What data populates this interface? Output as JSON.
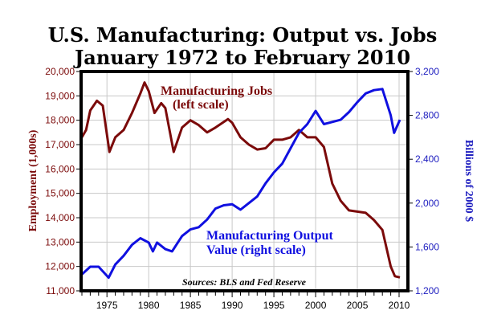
{
  "chart_data": {
    "type": "line",
    "title": "U.S. Manufacturing: Output vs. Jobs",
    "subtitle": "January 1972 to February 2010",
    "ylabel_left": "Employment (1,000s)",
    "ylabel_right": "Billions of 2000 $",
    "xlim": [
      1972,
      2010.5
    ],
    "ylim_left": [
      11000,
      20000
    ],
    "ylim_right": [
      1200,
      3200
    ],
    "x_ticks": [
      1975,
      1980,
      1985,
      1990,
      1995,
      2000,
      2005,
      2010
    ],
    "x_tick_labels": [
      "1975",
      "1980",
      "1985",
      "1990",
      "1995",
      "2000",
      "2005",
      "2010"
    ],
    "y_left_ticks": [
      11000,
      12000,
      13000,
      14000,
      15000,
      16000,
      17000,
      18000,
      19000,
      20000
    ],
    "y_left_tick_labels": [
      "11,000",
      "12,000",
      "13,000",
      "14,000",
      "15,000",
      "16,000",
      "17,000",
      "18,000",
      "19,000",
      "20,000"
    ],
    "y_right_ticks": [
      1200,
      1600,
      2000,
      2400,
      2800,
      3200
    ],
    "y_right_tick_labels": [
      "1,200",
      "1,600",
      "2,000",
      "2,400",
      "2,800",
      "3,200"
    ],
    "grid": true,
    "annotations": {
      "jobs_line1": "Manufacturing Jobs",
      "jobs_line2": "(left scale)",
      "output_line1": "Manufacturing Output",
      "output_line2": "Value (right scale)",
      "source": "Sources: BLS and Fed Reserve"
    },
    "colors": {
      "jobs": "#7b0a0a",
      "output": "#1010e0",
      "left_axis_text": "#7b0a0a",
      "right_axis_text": "#2020c0"
    },
    "series": [
      {
        "name": "Manufacturing Jobs",
        "axis": "left",
        "x": [
          1972,
          1972.5,
          1973,
          1973.8,
          1974.5,
          1975.3,
          1976,
          1977,
          1978,
          1979,
          1979.5,
          1980,
          1980.7,
          1981.5,
          1982,
          1983,
          1984,
          1985,
          1986,
          1987,
          1988,
          1989.5,
          1990,
          1991,
          1992,
          1993,
          1994,
          1995,
          1996,
          1997,
          1998,
          1999,
          2000,
          2001,
          2002,
          2003,
          2004,
          2005,
          2006,
          2007,
          2008,
          2009,
          2009.5,
          2010.1
        ],
        "values": [
          17300,
          17600,
          18400,
          18800,
          18600,
          16700,
          17300,
          17600,
          18300,
          19100,
          19550,
          19200,
          18300,
          18700,
          18500,
          16700,
          17700,
          18000,
          17800,
          17500,
          17700,
          18050,
          17900,
          17300,
          17000,
          16800,
          16850,
          17200,
          17200,
          17300,
          17600,
          17300,
          17300,
          16900,
          15400,
          14700,
          14300,
          14250,
          14200,
          13900,
          13500,
          12000,
          11600,
          11550
        ]
      },
      {
        "name": "Manufacturing Output Value",
        "axis": "right",
        "x": [
          1972,
          1973,
          1974,
          1975.2,
          1976,
          1977,
          1978,
          1979,
          1980,
          1980.5,
          1981,
          1982,
          1982.8,
          1984,
          1985,
          1986,
          1987,
          1988,
          1989,
          1990,
          1991,
          1992,
          1993,
          1994,
          1995,
          1996,
          1997,
          1998,
          1999,
          2000,
          2001,
          2002,
          2003,
          2004,
          2005,
          2006,
          2007,
          2008,
          2009,
          2009.4,
          2010.1
        ],
        "values": [
          1350,
          1420,
          1420,
          1320,
          1440,
          1520,
          1620,
          1680,
          1640,
          1560,
          1640,
          1580,
          1560,
          1700,
          1760,
          1780,
          1850,
          1950,
          1980,
          1990,
          1940,
          2000,
          2060,
          2180,
          2280,
          2360,
          2500,
          2640,
          2720,
          2840,
          2720,
          2740,
          2760,
          2830,
          2920,
          3000,
          3030,
          3040,
          2800,
          2640,
          2760
        ]
      }
    ]
  }
}
